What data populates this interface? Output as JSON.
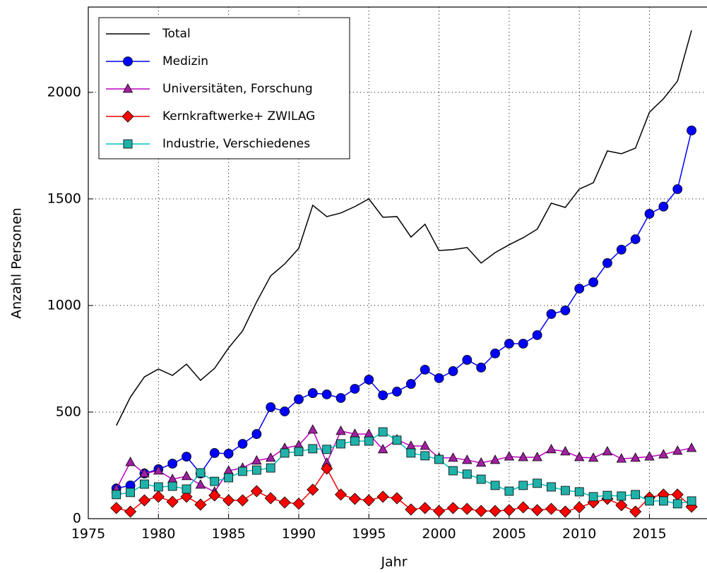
{
  "chart_data": {
    "type": "line",
    "x_label": "Jahr",
    "y_label": "Anzahl Personen",
    "x": [
      1977,
      1978,
      1979,
      1980,
      1981,
      1982,
      1983,
      1984,
      1985,
      1986,
      1987,
      1988,
      1989,
      1990,
      1991,
      1992,
      1993,
      1994,
      1995,
      1996,
      1997,
      1998,
      1999,
      2000,
      2001,
      2002,
      2003,
      2004,
      2005,
      2006,
      2007,
      2008,
      2009,
      2010,
      2011,
      2012,
      2013,
      2014,
      2015,
      2016,
      2017,
      2018
    ],
    "series": [
      {
        "name": "Total",
        "color": "#000000",
        "marker": "none",
        "values": [
          437,
          570,
          665,
          702,
          672,
          725,
          649,
          705,
          801,
          881,
          1017,
          1139,
          1195,
          1268,
          1470,
          1417,
          1434,
          1464,
          1500,
          1414,
          1417,
          1321,
          1381,
          1258,
          1262,
          1272,
          1199,
          1248,
          1285,
          1318,
          1358,
          1480,
          1460,
          1546,
          1576,
          1725,
          1712,
          1738,
          1907,
          1970,
          2053,
          2291
        ]
      },
      {
        "name": "Medizin",
        "color": "#0000ff",
        "marker": "circle",
        "values": [
          142,
          156,
          212,
          232,
          258,
          291,
          212,
          308,
          305,
          351,
          397,
          523,
          503,
          560,
          589,
          583,
          566,
          609,
          652,
          579,
          596,
          632,
          699,
          659,
          692,
          745,
          709,
          775,
          821,
          821,
          861,
          960,
          977,
          1079,
          1109,
          1199,
          1262,
          1311,
          1430,
          1464,
          1546,
          1821
        ]
      },
      {
        "name": "Universitäten, Forschung",
        "color": "#bf00bf",
        "marker": "triangle",
        "values": [
          139,
          265,
          212,
          225,
          185,
          199,
          159,
          126,
          225,
          238,
          272,
          285,
          331,
          344,
          417,
          262,
          411,
          397,
          397,
          325,
          371,
          341,
          341,
          285,
          285,
          275,
          262,
          275,
          291,
          288,
          288,
          325,
          315,
          288,
          285,
          315,
          281,
          285,
          291,
          301,
          318,
          331
        ]
      },
      {
        "name": "Kernkraftwerke+ ZWILAG",
        "color": "#ff0000",
        "marker": "diamond",
        "values": [
          50,
          33,
          86,
          103,
          79,
          103,
          66,
          109,
          86,
          86,
          129,
          96,
          76,
          70,
          136,
          235,
          113,
          93,
          86,
          103,
          96,
          43,
          50,
          36,
          50,
          46,
          36,
          36,
          40,
          53,
          40,
          46,
          33,
          53,
          76,
          93,
          63,
          33,
          99,
          113,
          113,
          56
        ]
      },
      {
        "name": "Industrie, Verschiedenes",
        "color": "#00bfbf",
        "marker": "square",
        "values": [
          113,
          123,
          162,
          149,
          152,
          139,
          215,
          175,
          192,
          222,
          228,
          238,
          308,
          315,
          328,
          325,
          351,
          364,
          364,
          407,
          368,
          308,
          295,
          278,
          225,
          209,
          185,
          156,
          129,
          156,
          166,
          149,
          132,
          126,
          103,
          109,
          106,
          113,
          83,
          83,
          70,
          83
        ]
      }
    ],
    "xlim": [
      1975,
      2019
    ],
    "ylim": [
      0,
      2400
    ],
    "xticks": [
      1975,
      1980,
      1985,
      1990,
      1995,
      2000,
      2005,
      2010,
      2015
    ],
    "yticks": [
      0,
      500,
      1000,
      1500,
      2000
    ],
    "grid": true,
    "legend": "upper left"
  }
}
